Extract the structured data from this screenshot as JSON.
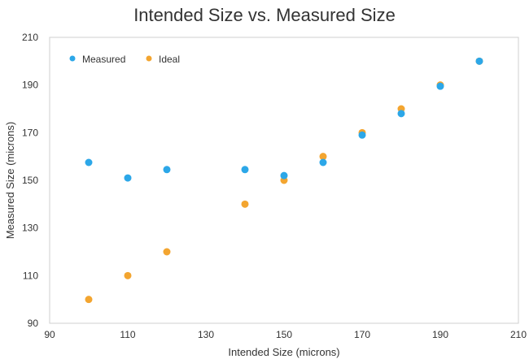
{
  "chart_data": {
    "type": "scatter",
    "title": "Intended Size vs. Measured Size",
    "xlabel": "Intended Size (microns)",
    "ylabel": "Measured Size (microns)",
    "xlim": [
      90,
      210
    ],
    "ylim": [
      90,
      210
    ],
    "xticks": [
      90,
      110,
      130,
      150,
      170,
      190,
      210
    ],
    "yticks": [
      90,
      110,
      130,
      150,
      170,
      190,
      210
    ],
    "grid": false,
    "legend_position": "top-left",
    "series": [
      {
        "name": "Measured",
        "color": "#2ca7e8",
        "points": [
          {
            "x": 100,
            "y": 157.5
          },
          {
            "x": 110,
            "y": 151
          },
          {
            "x": 120,
            "y": 154.5
          },
          {
            "x": 140,
            "y": 154.5
          },
          {
            "x": 150,
            "y": 152
          },
          {
            "x": 160,
            "y": 157.5
          },
          {
            "x": 170,
            "y": 169
          },
          {
            "x": 180,
            "y": 178
          },
          {
            "x": 190,
            "y": 189.5
          },
          {
            "x": 200,
            "y": 200
          }
        ]
      },
      {
        "name": "Ideal",
        "color": "#f3a530",
        "points": [
          {
            "x": 100,
            "y": 100
          },
          {
            "x": 110,
            "y": 110
          },
          {
            "x": 120,
            "y": 120
          },
          {
            "x": 140,
            "y": 140
          },
          {
            "x": 150,
            "y": 150
          },
          {
            "x": 160,
            "y": 160
          },
          {
            "x": 170,
            "y": 170
          },
          {
            "x": 180,
            "y": 180
          },
          {
            "x": 190,
            "y": 190
          },
          {
            "x": 200,
            "y": 200
          }
        ]
      }
    ]
  }
}
